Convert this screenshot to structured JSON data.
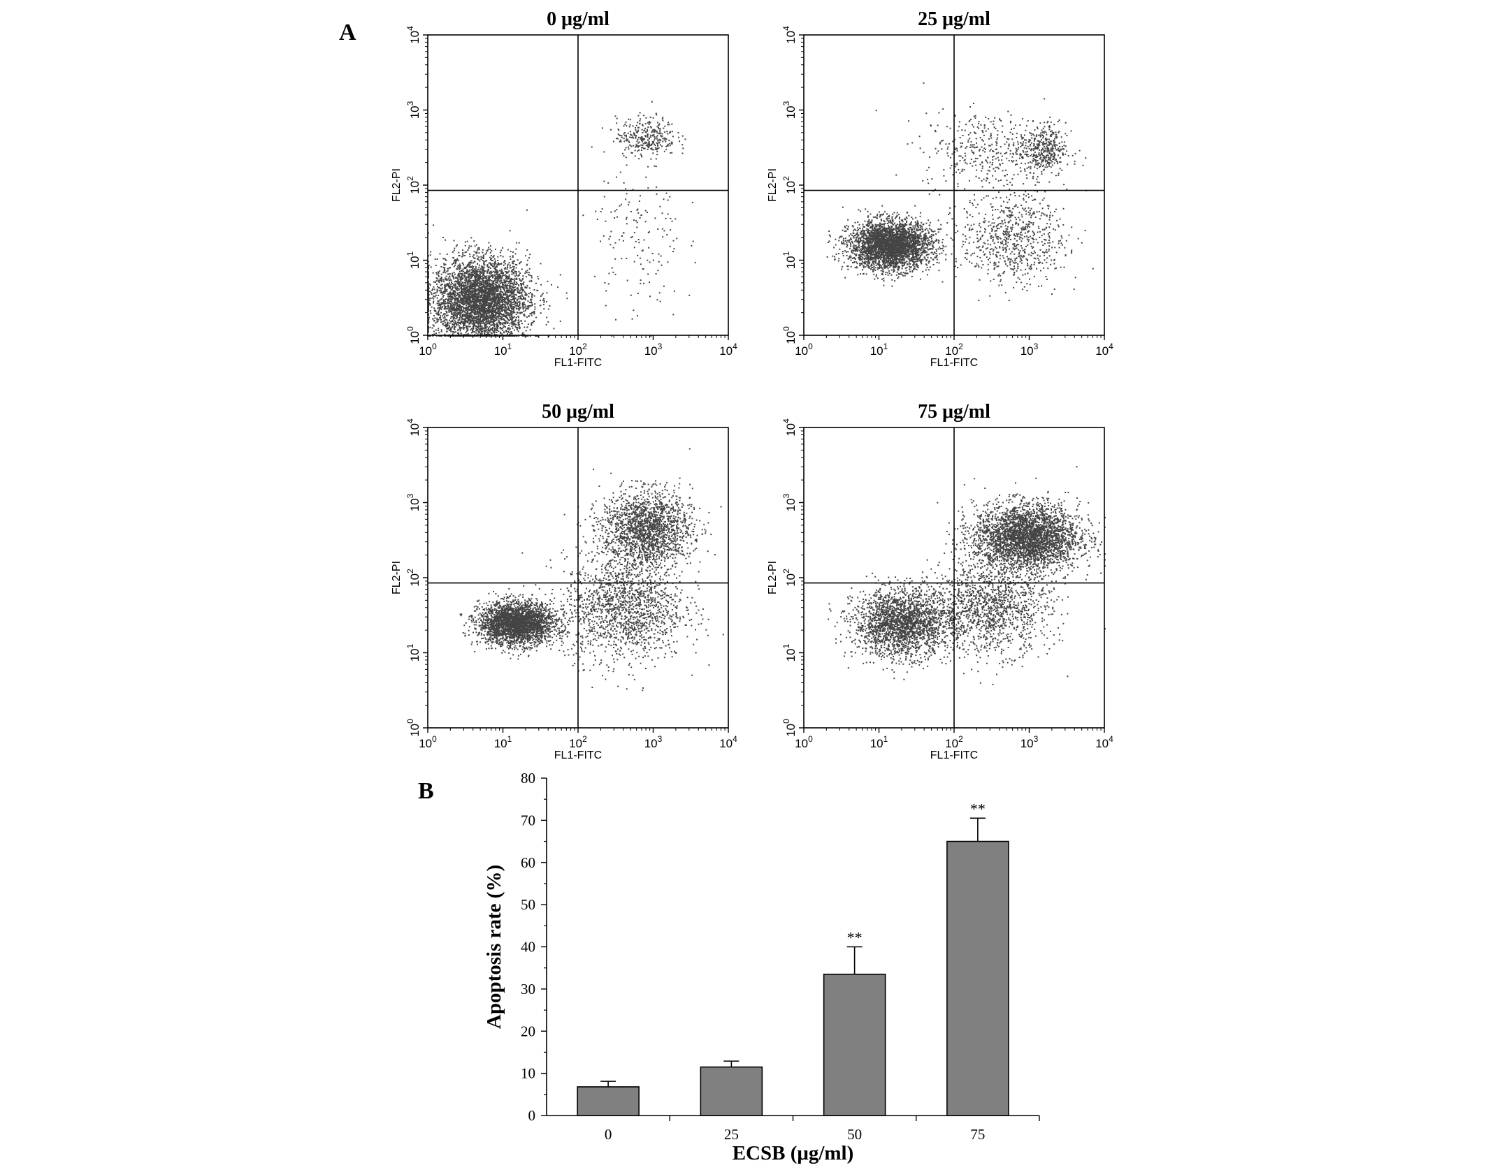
{
  "figure": {
    "panel_a_label": "A",
    "panel_b_label": "B"
  },
  "flow_panels": [
    {
      "title": "0 μg/ml",
      "xlabel": "FL1-FITC",
      "ylabel": "FL2-PI",
      "scale": "log",
      "x_range": [
        1,
        10000
      ],
      "y_range": [
        1,
        10000
      ],
      "quadrant_gate": {
        "x": 100,
        "y": 85
      },
      "clusters": [
        {
          "center": [
            5,
            3
          ],
          "spread_decades": [
            0.32,
            0.28
          ],
          "count": 4200
        },
        {
          "center": [
            800,
            450
          ],
          "spread_decades": [
            0.2,
            0.13
          ],
          "count": 320
        },
        {
          "center": [
            600,
            20
          ],
          "spread_decades": [
            0.3,
            0.55
          ],
          "count": 160
        }
      ]
    },
    {
      "title": "25 μg/ml",
      "xlabel": "FL1-FITC",
      "ylabel": "FL2-PI",
      "scale": "log",
      "x_range": [
        1,
        10000
      ],
      "y_range": [
        1,
        10000
      ],
      "quadrant_gate": {
        "x": 100,
        "y": 85
      },
      "clusters": [
        {
          "center": [
            14,
            16
          ],
          "spread_decades": [
            0.27,
            0.16
          ],
          "count": 3200
        },
        {
          "center": [
            600,
            20
          ],
          "spread_decades": [
            0.35,
            0.3
          ],
          "count": 700
        },
        {
          "center": [
            1500,
            300
          ],
          "spread_decades": [
            0.15,
            0.18
          ],
          "count": 350
        },
        {
          "center": [
            300,
            300
          ],
          "spread_decades": [
            0.45,
            0.25
          ],
          "count": 400
        }
      ]
    },
    {
      "title": "50 μg/ml",
      "xlabel": "FL1-FITC",
      "ylabel": "FL2-PI",
      "scale": "log",
      "x_range": [
        1,
        10000
      ],
      "y_range": [
        1,
        10000
      ],
      "quadrant_gate": {
        "x": 100,
        "y": 85
      },
      "clusters": [
        {
          "center": [
            15,
            25
          ],
          "spread_decades": [
            0.25,
            0.14
          ],
          "count": 2800
        },
        {
          "center": [
            800,
            450
          ],
          "spread_decades": [
            0.3,
            0.25
          ],
          "count": 1800
        },
        {
          "center": [
            400,
            40
          ],
          "spread_decades": [
            0.4,
            0.35
          ],
          "count": 1500
        }
      ]
    },
    {
      "title": "75 μg/ml",
      "xlabel": "FL1-FITC",
      "ylabel": "FL2-PI",
      "scale": "log",
      "x_range": [
        1,
        10000
      ],
      "y_range": [
        1,
        10000
      ],
      "quadrant_gate": {
        "x": 100,
        "y": 85
      },
      "clusters": [
        {
          "center": [
            20,
            25
          ],
          "spread_decades": [
            0.32,
            0.22
          ],
          "count": 2200
        },
        {
          "center": [
            900,
            350
          ],
          "spread_decades": [
            0.35,
            0.22
          ],
          "count": 3200
        },
        {
          "center": [
            300,
            40
          ],
          "spread_decades": [
            0.4,
            0.3
          ],
          "count": 1300
        }
      ]
    }
  ],
  "chart_data": {
    "type": "bar",
    "title": "",
    "categories": [
      "0",
      "25",
      "50",
      "75"
    ],
    "values": [
      6.8,
      11.5,
      33.5,
      65
    ],
    "error": [
      1.3,
      1.4,
      6.5,
      5.5
    ],
    "significance": [
      "",
      "",
      "**",
      "**"
    ],
    "xlabel": "ECSB (μg/ml)",
    "ylabel": "Apoptosis rate (%)",
    "ylim": [
      0,
      80
    ],
    "yticks": [
      0,
      10,
      20,
      30,
      40,
      50,
      60,
      70,
      80
    ],
    "bar_color": "#808080",
    "grid": false,
    "legend": "none"
  }
}
